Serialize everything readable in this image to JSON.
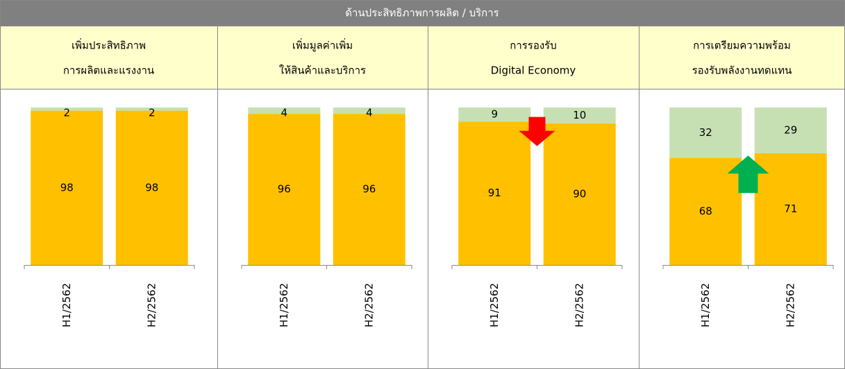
{
  "header": {
    "title": "ด้านประสิทธิภาพการผลิต / บริการ"
  },
  "chart_data": [
    {
      "type": "bar",
      "stacked": true,
      "title": "เพิ่มประสิทธิภาพ",
      "subtitle": "การผลิตและแรงงาน",
      "categories": [
        "H1/2562",
        "H2/2562"
      ],
      "ylim": [
        0,
        100
      ],
      "series": [
        {
          "color": "#ffc000",
          "values": [
            98,
            98
          ]
        },
        {
          "color": "#c6e0b4",
          "values": [
            2,
            2
          ]
        }
      ]
    },
    {
      "type": "bar",
      "stacked": true,
      "title": "เพิ่มมูลค่าเพิ่ม",
      "subtitle": "ให้สินค้าและบริการ",
      "categories": [
        "H1/2562",
        "H2/2562"
      ],
      "ylim": [
        0,
        100
      ],
      "series": [
        {
          "color": "#ffc000",
          "values": [
            96,
            96
          ]
        },
        {
          "color": "#c6e0b4",
          "values": [
            4,
            4
          ]
        }
      ]
    },
    {
      "type": "bar",
      "stacked": true,
      "title": "การรองรับ",
      "subtitle": "Digital Economy",
      "categories": [
        "H1/2562",
        "H2/2562"
      ],
      "ylim": [
        0,
        100
      ],
      "series": [
        {
          "color": "#ffc000",
          "values": [
            91,
            90
          ]
        },
        {
          "color": "#c6e0b4",
          "values": [
            9,
            10
          ]
        }
      ],
      "arrow": {
        "direction": "down",
        "color": "#ff0000"
      }
    },
    {
      "type": "bar",
      "stacked": true,
      "title": "การเตรียมความพร้อม",
      "subtitle": "รองรับพลังงานทดแทน",
      "categories": [
        "H1/2562",
        "H2/2562"
      ],
      "ylim": [
        0,
        100
      ],
      "series": [
        {
          "color": "#ffc000",
          "values": [
            68,
            71
          ]
        },
        {
          "color": "#c6e0b4",
          "values": [
            32,
            29
          ]
        }
      ],
      "arrow": {
        "direction": "up",
        "color": "#00b050"
      }
    }
  ]
}
